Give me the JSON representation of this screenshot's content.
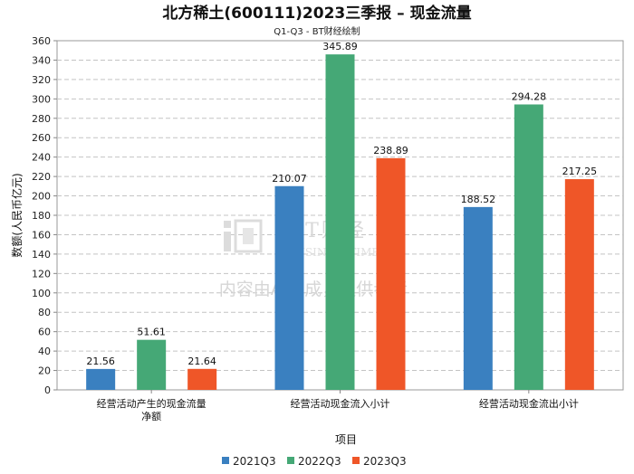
{
  "chart_data": {
    "type": "bar",
    "title": "北方稀土(600111)2023三季报 – 现金流量",
    "subtitle": "Q1-Q3 - BT财经绘制",
    "xlabel": "项目",
    "ylabel": "数额(人民币亿元)",
    "ylim": [
      0,
      360
    ],
    "ytick_step": 20,
    "grid": true,
    "legend_position": "bottom",
    "categories": [
      [
        "经营活动产生的现金流量",
        "净额"
      ],
      [
        "经营活动现金流入小计"
      ],
      [
        "经营活动现金流出小计"
      ]
    ],
    "series": [
      {
        "name": "2021Q3",
        "color": "#3a80c0",
        "values": [
          21.56,
          210.07,
          188.52
        ],
        "labels": [
          "21.56",
          "210.07",
          "188.52"
        ]
      },
      {
        "name": "2022Q3",
        "color": "#45a876",
        "values": [
          51.61,
          345.89,
          294.28
        ],
        "labels": [
          "51.61",
          "345.89",
          "294.28"
        ]
      },
      {
        "name": "2023Q3",
        "color": "#ef5628",
        "values": [
          21.64,
          238.89,
          217.25
        ],
        "labels": [
          "21.64",
          "238.89",
          "217.25"
        ]
      }
    ]
  },
  "watermark": {
    "brand": "BT财经",
    "brand_en": "BUSINESSTIMES",
    "notice": "内容由AI生成，仅供参考"
  }
}
